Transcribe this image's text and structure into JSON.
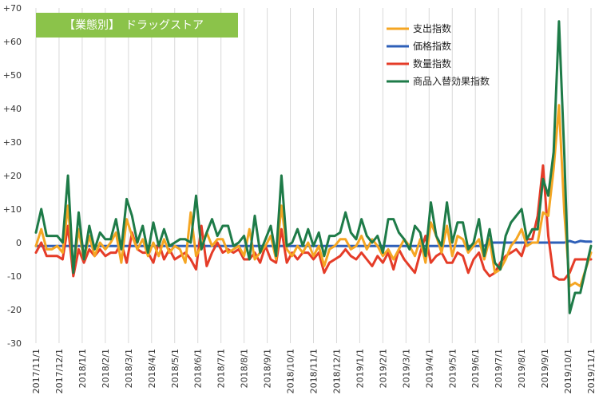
{
  "chart_data": {
    "type": "line",
    "title": "【業態別】　ドラッグストア",
    "title_bg_color": "#8bc34a",
    "grid": "vertical-only",
    "legend_position": "top-right",
    "ylim": [
      -30,
      70
    ],
    "y_ticks": [
      70,
      60,
      50,
      40,
      30,
      20,
      10,
      0,
      -10,
      -20,
      -30
    ],
    "y_tick_labels": [
      "+70",
      "+60",
      "+50",
      "+40",
      "+30",
      "+20",
      "+10",
      "0",
      "-10",
      "-20",
      "-30"
    ],
    "x_tick_labels": [
      "2017/11/1",
      "2017/12/1",
      "2018/1/1",
      "2018/2/1",
      "2018/3/1",
      "2018/4/1",
      "2018/5/1",
      "2018/6/1",
      "2018/7/1",
      "2018/8/1",
      "2018/9/1",
      "2018/10/1",
      "2018/11/1",
      "2018/12/1",
      "2019/1/1",
      "2019/2/1",
      "2019/3/1",
      "2019/4/1",
      "2019/5/1",
      "2019/6/1",
      "2019/7/1",
      "2019/8/1",
      "2019/9/1",
      "2019/10/1",
      "2019/11/1"
    ],
    "x_start": "2017/11/1",
    "x_step": "1 week",
    "series": [
      {
        "name": "支出指数",
        "color": "#f5a623",
        "values": [
          -1,
          4,
          -2,
          -2,
          -1,
          -3,
          11,
          -8,
          4,
          -5,
          2,
          -4,
          0,
          -2,
          0,
          3,
          -6,
          7,
          2,
          -2,
          1,
          -4,
          0,
          -4,
          1,
          -3,
          -1,
          -2,
          -6,
          9,
          -4,
          -1,
          3,
          -1,
          1,
          1,
          -3,
          -2,
          -1,
          -4,
          4,
          -5,
          -3,
          -1,
          2,
          -5,
          11,
          -2,
          -4,
          -1,
          -3,
          0,
          -4,
          -1,
          -7,
          -2,
          -1,
          1,
          1,
          -2,
          -1,
          2,
          -2,
          1,
          -1,
          -4,
          -2,
          -5,
          -2,
          1,
          -1,
          -4,
          1,
          -6,
          6,
          2,
          -3,
          5,
          -4,
          2,
          1,
          -3,
          -1,
          1,
          -5,
          1,
          -9,
          -8,
          -5,
          -1,
          1,
          4,
          -1,
          0,
          0,
          9,
          8,
          22,
          41,
          9,
          -13,
          -12,
          -13,
          -8,
          -3
        ]
      },
      {
        "name": "価格指数",
        "color": "#2e5fb8",
        "values": [
          -1,
          -1,
          -1,
          -1,
          -1,
          -1,
          -1,
          -1,
          -1,
          -1,
          -1,
          -1,
          -1,
          -1,
          -1,
          -1,
          -1,
          -1,
          -1,
          -1,
          -1,
          -1,
          -1,
          -1,
          -1,
          -1,
          -1,
          -1,
          -1,
          -1,
          -1,
          -1,
          -1,
          -1,
          -1,
          -1,
          -1,
          -1,
          -1,
          -1,
          -1,
          -1,
          -1,
          -1,
          -1,
          -1,
          -1,
          -1,
          -1,
          -1,
          -1,
          -1,
          -1,
          -1,
          -1,
          -1,
          -1,
          -1,
          -1,
          -1,
          -1,
          -1,
          -1,
          -1,
          -1,
          -1,
          -1,
          -1,
          -1,
          -1,
          -1,
          -1,
          -1,
          -1,
          -1,
          -1,
          -1,
          -1,
          -1,
          -1,
          -1,
          -1,
          -1,
          -1,
          -1,
          0,
          0,
          0,
          0,
          0,
          0,
          0,
          0,
          0,
          0,
          0,
          0,
          0,
          0,
          0,
          0.5,
          0,
          0.5,
          0.3,
          0.3
        ]
      },
      {
        "name": "数量指数",
        "color": "#e53c28",
        "values": [
          -3,
          0,
          -4,
          -4,
          -4,
          -5,
          5,
          -10,
          -2,
          -6,
          -2,
          -4,
          -2,
          -4,
          -3,
          -3,
          0,
          -6,
          3,
          -2,
          -3,
          -3,
          -6,
          0,
          -5,
          -2,
          -5,
          -4,
          -3,
          -5,
          -8,
          5,
          -7,
          -3,
          0,
          -3,
          -2,
          -3,
          -2,
          -5,
          -5,
          -3,
          -6,
          -1,
          -5,
          -6,
          4,
          -6,
          -3,
          -5,
          -3,
          -3,
          -5,
          -3,
          -9,
          -6,
          -5,
          -4,
          -2,
          -4,
          -5,
          -3,
          -5,
          -7,
          -4,
          -6,
          -3,
          -8,
          -2,
          -5,
          -7,
          -9,
          -3,
          2,
          -6,
          -4,
          -3,
          -6,
          -6,
          -3,
          -4,
          -9,
          -5,
          -3,
          -8,
          -10,
          -9,
          -6,
          -4,
          -3,
          -2,
          -4,
          1,
          1,
          8,
          23,
          2,
          -10,
          -11,
          -11,
          -9,
          -5,
          -5,
          -5,
          -5
        ]
      },
      {
        "name": "商品入替効果指数",
        "color": "#1e7b48",
        "values": [
          3,
          10,
          2,
          2,
          2,
          0,
          20,
          -9,
          9,
          -5,
          5,
          -2,
          3,
          1,
          1,
          7,
          -2,
          13,
          8,
          0,
          5,
          -3,
          6,
          -1,
          4,
          -1,
          0,
          1,
          1,
          0,
          14,
          -2,
          3,
          7,
          2,
          5,
          5,
          -1,
          0,
          2,
          -5,
          8,
          -3,
          1,
          5,
          -4,
          20,
          -1,
          0,
          4,
          -1,
          4,
          -1,
          3,
          -4,
          2,
          2,
          3,
          9,
          3,
          1,
          7,
          2,
          0,
          2,
          -3,
          7,
          7,
          3,
          1,
          -2,
          5,
          3,
          -4,
          12,
          2,
          -1,
          12,
          0,
          6,
          6,
          -2,
          0,
          7,
          -4,
          4,
          -6,
          -8,
          2,
          6,
          8,
          10,
          1,
          4,
          4,
          19,
          14,
          27,
          66,
          26,
          -21,
          -15,
          -15,
          -8,
          -1
        ]
      }
    ]
  }
}
